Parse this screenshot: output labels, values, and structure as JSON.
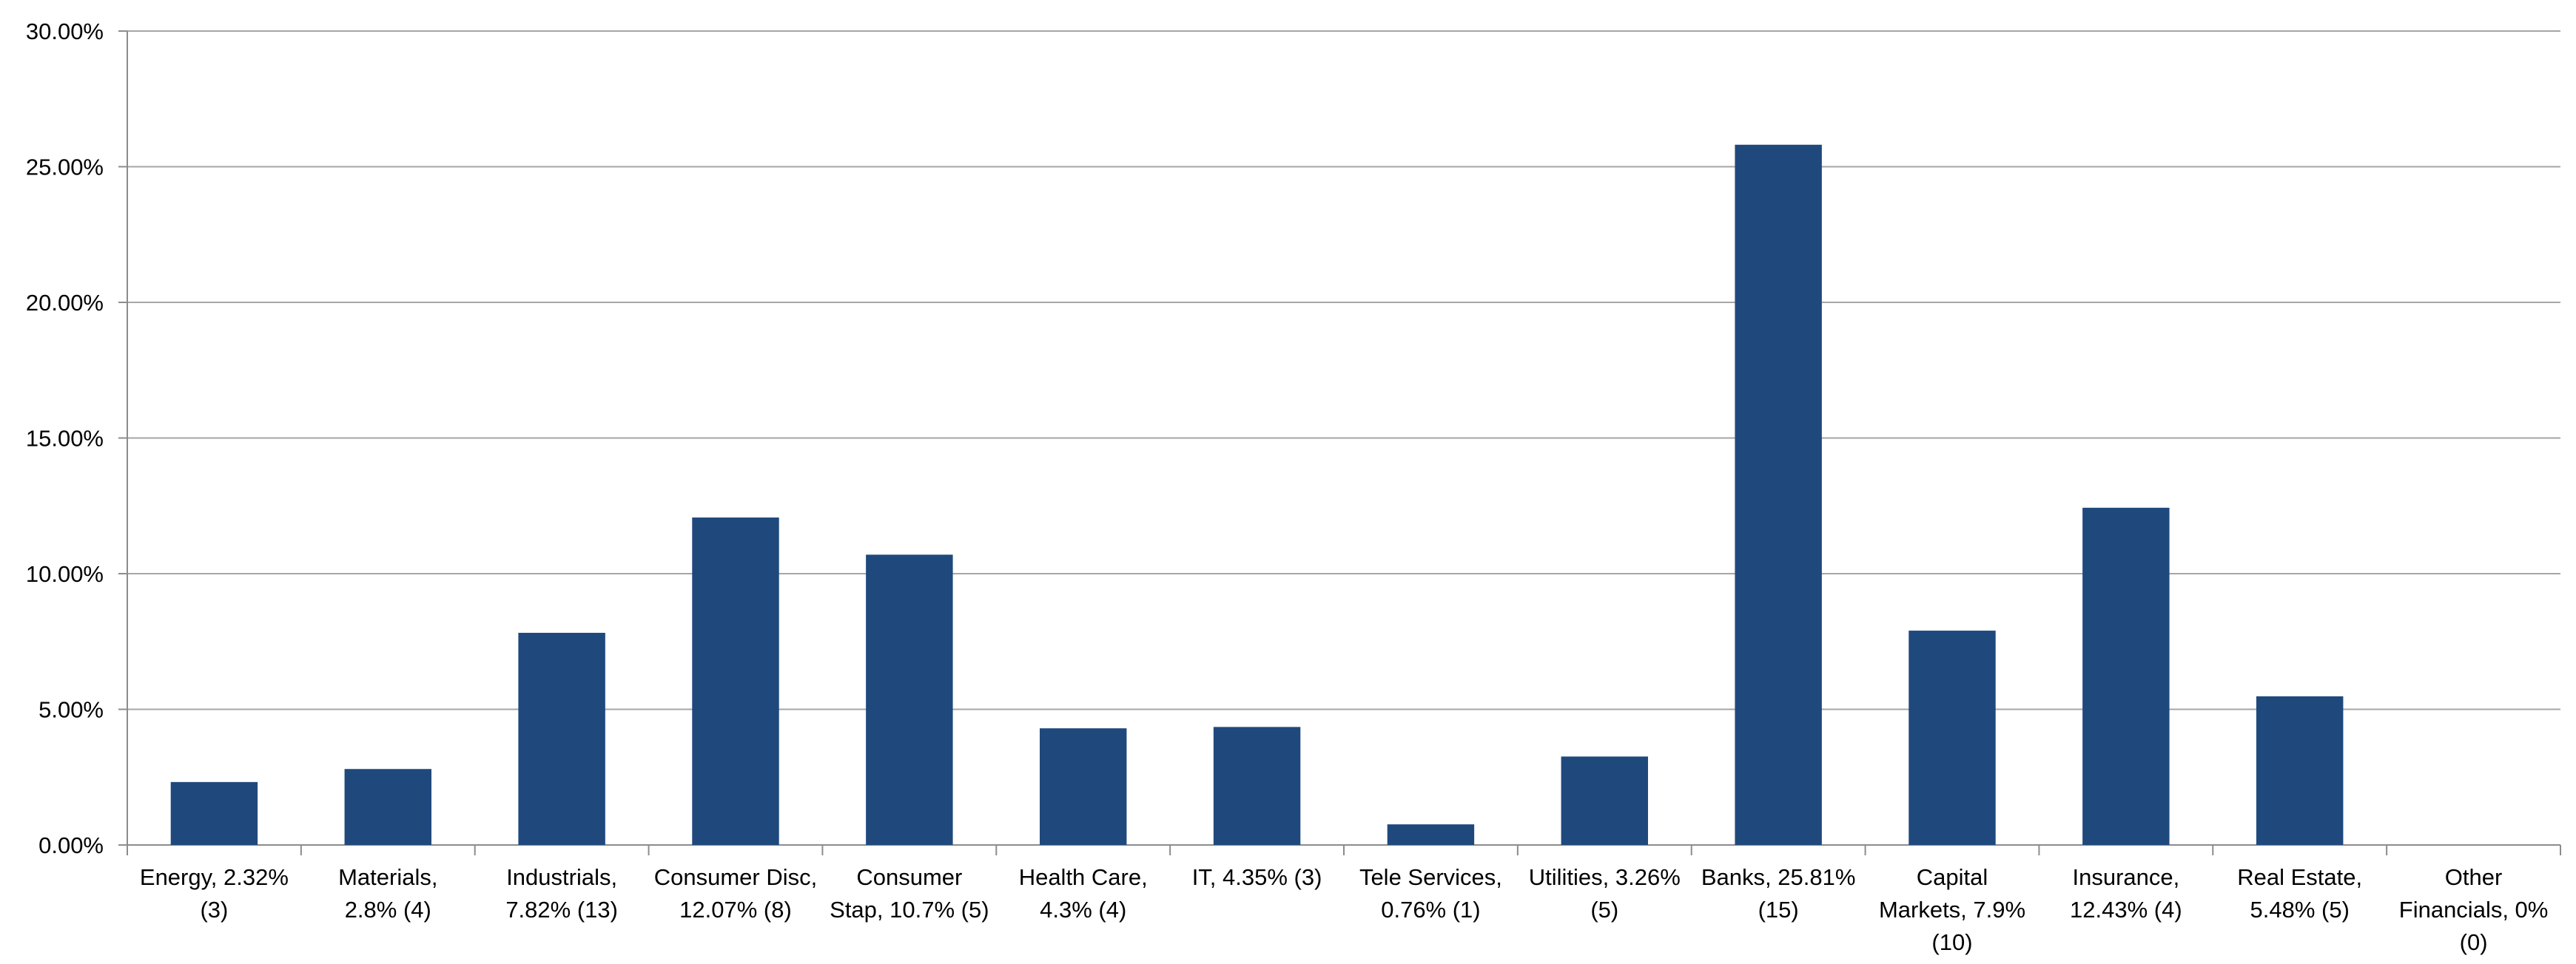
{
  "chart_data": {
    "type": "bar",
    "title": "",
    "xlabel": "",
    "ylabel": "",
    "ylim": [
      0,
      30
    ],
    "y_tick_values": [
      0,
      5,
      10,
      15,
      20,
      25,
      30
    ],
    "y_tick_labels": [
      "0.00%",
      "5.00%",
      "10.00%",
      "15.00%",
      "20.00%",
      "25.00%",
      "30.00%"
    ],
    "grid": true,
    "legend": "none",
    "bar_color": "#1F497D",
    "grid_color": "#A6A6A6",
    "categories": [
      [
        "Energy, 2.32%",
        "(3)"
      ],
      [
        "Materials,",
        "2.8% (4)"
      ],
      [
        "Industrials,",
        "7.82% (13)"
      ],
      [
        "Consumer Disc,",
        "12.07% (8)"
      ],
      [
        "Consumer",
        "Stap, 10.7% (5)"
      ],
      [
        "Health Care,",
        "4.3% (4)"
      ],
      [
        "IT, 4.35% (3)"
      ],
      [
        "Tele Services,",
        "0.76% (1)"
      ],
      [
        "Utilities, 3.26%",
        "(5)"
      ],
      [
        "Banks, 25.81%",
        "(15)"
      ],
      [
        "Capital",
        "Markets, 7.9%",
        "(10)"
      ],
      [
        "Insurance,",
        "12.43% (4)"
      ],
      [
        "Real Estate,",
        "5.48% (5)"
      ],
      [
        "Other",
        "Financials, 0%",
        "(0)"
      ]
    ],
    "values": [
      2.32,
      2.8,
      7.82,
      12.07,
      10.7,
      4.3,
      4.35,
      0.76,
      3.26,
      25.81,
      7.9,
      12.43,
      5.48,
      0
    ]
  }
}
